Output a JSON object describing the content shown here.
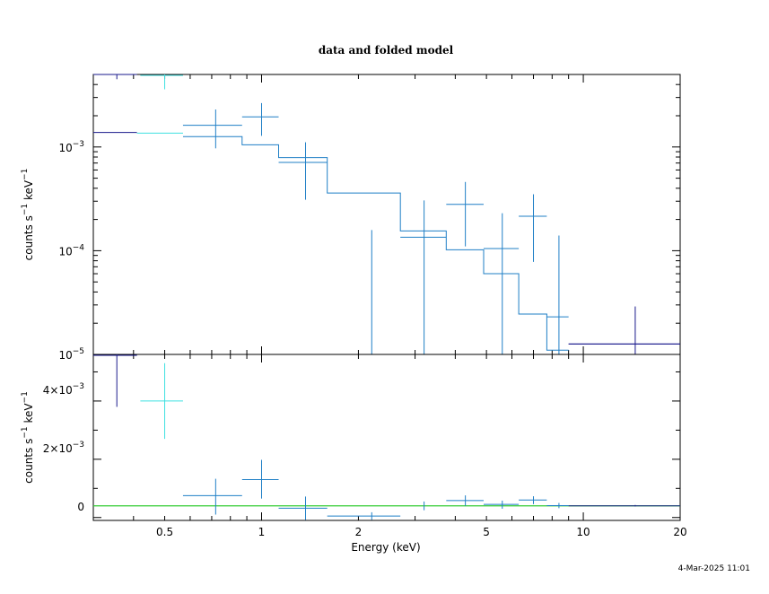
{
  "chart_data": {
    "type": "scatter",
    "title": "data and folded model",
    "timestamp": "4-Mar-2025 11:01",
    "xlabel": "Energy (keV)",
    "xscale": "log",
    "xlim": [
      0.3,
      20
    ],
    "xticks": [
      {
        "value": 0.5,
        "label": "0.5"
      },
      {
        "value": 1,
        "label": "1"
      },
      {
        "value": 2,
        "label": "2"
      },
      {
        "value": 5,
        "label": "5"
      },
      {
        "value": 10,
        "label": "10"
      },
      {
        "value": 20,
        "label": "20"
      }
    ],
    "colors": {
      "navy": "#1a1a8c",
      "cyan": "#3fe0e0",
      "blue": "#1f7fc6",
      "model_line": "#33cc33",
      "axes": "#000000"
    },
    "panels": [
      {
        "id": "top",
        "ylabel_main": "counts s",
        "ylabel_sup1": "−1",
        "ylabel_mid": " keV",
        "ylabel_sup2": "−1",
        "yscale": "log",
        "ylim": [
          1e-05,
          0.005
        ],
        "yticks": [
          {
            "value": 1e-05,
            "base": "10",
            "exp": "−5"
          },
          {
            "value": 0.0001,
            "base": "10",
            "exp": "−4"
          },
          {
            "value": 0.001,
            "base": "10",
            "exp": "−3"
          }
        ],
        "series": [
          {
            "color": "navy",
            "data": [
              {
                "x": 0.355,
                "xlo": 0.3,
                "xhi": 0.41,
                "y": 0.0061,
                "ylo": 0.0045,
                "yhi": 0.0075
              },
              {
                "x": 14.5,
                "xlo": 9.0,
                "xhi": 20.0,
                "y": 1.26e-05,
                "ylo": 9e-06,
                "yhi": 2.9e-05
              }
            ]
          },
          {
            "color": "cyan",
            "data": [
              {
                "x": 0.5,
                "xlo": 0.42,
                "xhi": 0.57,
                "y": 0.0049,
                "ylo": 0.0036,
                "yhi": 0.0062
              }
            ]
          },
          {
            "color": "blue",
            "data": [
              {
                "x": 0.72,
                "xlo": 0.57,
                "xhi": 0.87,
                "y": 0.00162,
                "ylo": 0.00097,
                "yhi": 0.0023
              },
              {
                "x": 1.0,
                "xlo": 0.87,
                "xhi": 1.13,
                "y": 0.00195,
                "ylo": 0.00128,
                "yhi": 0.00265
              },
              {
                "x": 1.37,
                "xlo": 1.13,
                "xhi": 1.6,
                "y": 0.00071,
                "ylo": 0.00031,
                "yhi": 0.00111
              },
              {
                "x": 2.2,
                "xlo": 2.2,
                "xhi": 2.2,
                "y": 9e-06,
                "ylo": 9e-06,
                "yhi": 0.000158
              },
              {
                "x": 3.2,
                "xlo": 2.7,
                "xhi": 3.75,
                "y": 0.000135,
                "ylo": 9e-06,
                "yhi": 0.000305
              },
              {
                "x": 4.3,
                "xlo": 3.75,
                "xhi": 4.9,
                "y": 0.00028,
                "ylo": 0.00011,
                "yhi": 0.00046
              },
              {
                "x": 5.6,
                "xlo": 4.9,
                "xhi": 6.3,
                "y": 0.000105,
                "ylo": 9e-06,
                "yhi": 0.00023
              },
              {
                "x": 7.0,
                "xlo": 6.3,
                "xhi": 7.7,
                "y": 0.000215,
                "ylo": 7.8e-05,
                "yhi": 0.00035
              },
              {
                "x": 8.4,
                "xlo": 7.7,
                "xhi": 9.0,
                "y": 2.3e-05,
                "ylo": 9e-06,
                "yhi": 0.00014
              }
            ]
          }
        ],
        "model_steps": [
          {
            "color": "navy",
            "points": [
              [
                0.3,
                0.00138
              ],
              [
                0.41,
                0.00138
              ]
            ]
          },
          {
            "color": "cyan",
            "points": [
              [
                0.41,
                0.00136
              ],
              [
                0.57,
                0.00136
              ]
            ]
          },
          {
            "color": "blue",
            "points": [
              [
                0.57,
                0.00126
              ],
              [
                0.87,
                0.00126
              ],
              [
                0.87,
                0.00105
              ],
              [
                1.13,
                0.00105
              ],
              [
                1.13,
                0.00079
              ],
              [
                1.6,
                0.00079
              ],
              [
                1.6,
                0.00036
              ],
              [
                2.7,
                0.00036
              ],
              [
                2.7,
                0.000155
              ],
              [
                3.75,
                0.000155
              ],
              [
                3.75,
                0.000102
              ],
              [
                4.9,
                0.000102
              ],
              [
                4.9,
                6e-05
              ],
              [
                6.3,
                6e-05
              ],
              [
                6.3,
                2.45e-05
              ],
              [
                7.7,
                2.45e-05
              ],
              [
                7.7,
                1.1e-05
              ],
              [
                9.0,
                1.1e-05
              ]
            ]
          },
          {
            "color": "navy",
            "points": [
              [
                9.0,
                1.26e-05
              ],
              [
                20.0,
                1.26e-05
              ]
            ]
          }
        ]
      },
      {
        "id": "bottom",
        "ylabel_main": "counts s",
        "ylabel_sup1": "−1",
        "ylabel_mid": " keV",
        "ylabel_sup2": "−1",
        "yscale": "linear",
        "ylim": [
          -0.0005,
          0.0052
        ],
        "yticks": [
          {
            "value": 0,
            "label": "0"
          },
          {
            "value": 0.002,
            "label": "2×10",
            "exp": "−3"
          },
          {
            "value": 0.004,
            "label": "4×10",
            "exp": "−3"
          }
        ],
        "zero_line": 0,
        "series": [
          {
            "color": "navy",
            "data": [
              {
                "x": 0.355,
                "xlo": 0.3,
                "xhi": 0.41,
                "y": 0.00517,
                "ylo": 0.0034,
                "yhi": 0.0052
              },
              {
                "x": 14.5,
                "xlo": 9.0,
                "xhi": 20.0,
                "y": 0.0,
                "ylo": -2e-05,
                "yhi": 3e-05
              }
            ]
          },
          {
            "color": "cyan",
            "data": [
              {
                "x": 0.5,
                "xlo": 0.42,
                "xhi": 0.57,
                "y": 0.0036,
                "ylo": 0.0023,
                "yhi": 0.0049
              }
            ]
          },
          {
            "color": "blue",
            "data": [
              {
                "x": 0.72,
                "xlo": 0.57,
                "xhi": 0.87,
                "y": 0.00035,
                "ylo": -0.0003,
                "yhi": 0.00093
              },
              {
                "x": 1.0,
                "xlo": 0.87,
                "xhi": 1.13,
                "y": 0.0009,
                "ylo": 0.00025,
                "yhi": 0.00158
              },
              {
                "x": 1.37,
                "xlo": 1.13,
                "xhi": 1.6,
                "y": -8e-05,
                "ylo": -0.00048,
                "yhi": 0.00032
              },
              {
                "x": 2.2,
                "xlo": 1.6,
                "xhi": 2.7,
                "y": -0.00035,
                "ylo": -0.00048,
                "yhi": -0.00022
              },
              {
                "x": 3.2,
                "xlo": 3.2,
                "xhi": 3.2,
                "y": 0.0,
                "ylo": -0.00015,
                "yhi": 0.00015
              },
              {
                "x": 4.3,
                "xlo": 3.75,
                "xhi": 4.9,
                "y": 0.00018,
                "ylo": 0.0,
                "yhi": 0.00036
              },
              {
                "x": 5.6,
                "xlo": 4.9,
                "xhi": 6.3,
                "y": 5e-05,
                "ylo": -0.0001,
                "yhi": 0.00018
              },
              {
                "x": 7.0,
                "xlo": 6.3,
                "xhi": 7.7,
                "y": 0.0002,
                "ylo": 6e-05,
                "yhi": 0.00033
              },
              {
                "x": 8.4,
                "xlo": 7.7,
                "xhi": 9.0,
                "y": 1e-05,
                "ylo": -8e-05,
                "yhi": 0.0001
              }
            ]
          }
        ]
      }
    ]
  }
}
